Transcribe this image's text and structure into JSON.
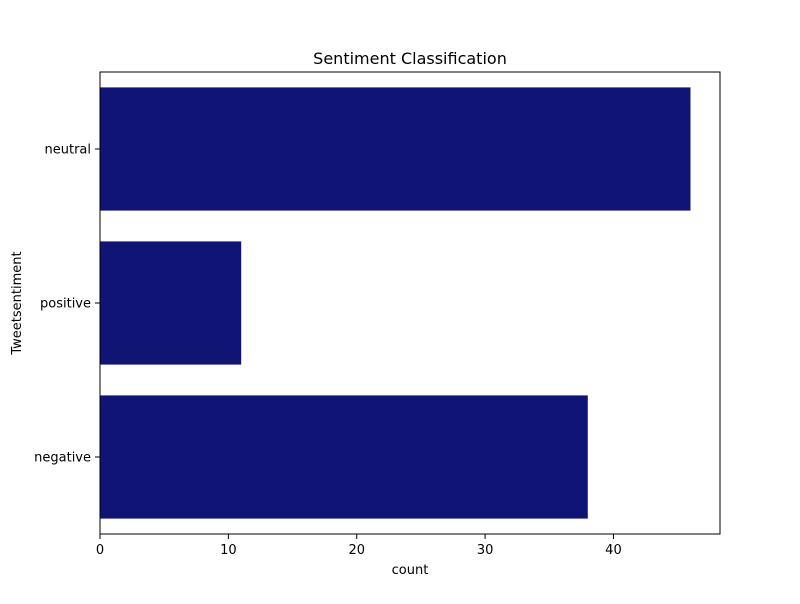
{
  "chart_data": {
    "type": "bar",
    "orientation": "horizontal",
    "title": "Sentiment Classification",
    "xlabel": "count",
    "ylabel": "Tweetsentiment",
    "categories": [
      "neutral",
      "positive",
      "negative"
    ],
    "values": [
      46,
      11,
      38
    ],
    "xlim": [
      0,
      48.3
    ],
    "xticks": [
      0,
      10,
      20,
      30,
      40
    ],
    "grid": false,
    "legend": "none",
    "bar_color": "#101475"
  }
}
